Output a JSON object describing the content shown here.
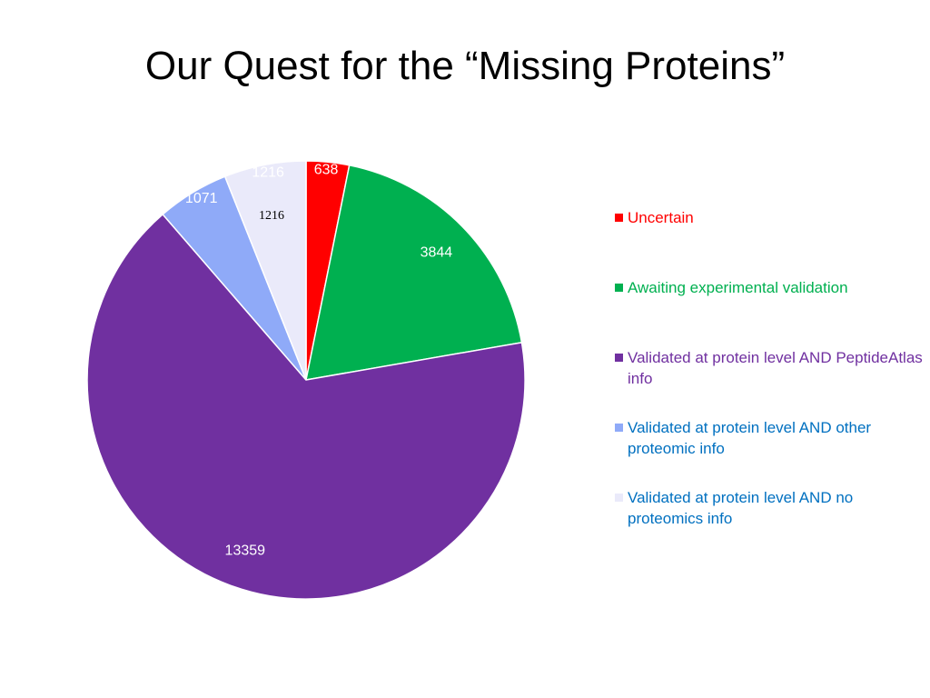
{
  "chart_data": {
    "type": "pie",
    "title": "Our Quest for the “Missing Proteins”",
    "series": [
      {
        "name": "Uncertain",
        "color": "#ff0000",
        "label_color": "#ff0000",
        "values": [
          638
        ]
      },
      {
        "name": "Awaiting experimental validation",
        "color": "#00b050",
        "label_color": "#00b050",
        "values": [
          3844
        ]
      },
      {
        "name": "Validated at protein level AND PeptideAtlas info",
        "color": "#7030a0",
        "label_color": "#7030a0",
        "values": [
          13359
        ]
      },
      {
        "name": "Validated at protein level AND other proteomic info",
        "color": "#8faaf8",
        "label_color": "#0070c0",
        "values": [
          1071
        ]
      },
      {
        "name": "Validated at protein level AND no proteomics info",
        "color": "#eaeafa",
        "label_color": "#0070c0",
        "values": [
          1216
        ]
      }
    ],
    "annotation": "1216",
    "legend": "right"
  }
}
